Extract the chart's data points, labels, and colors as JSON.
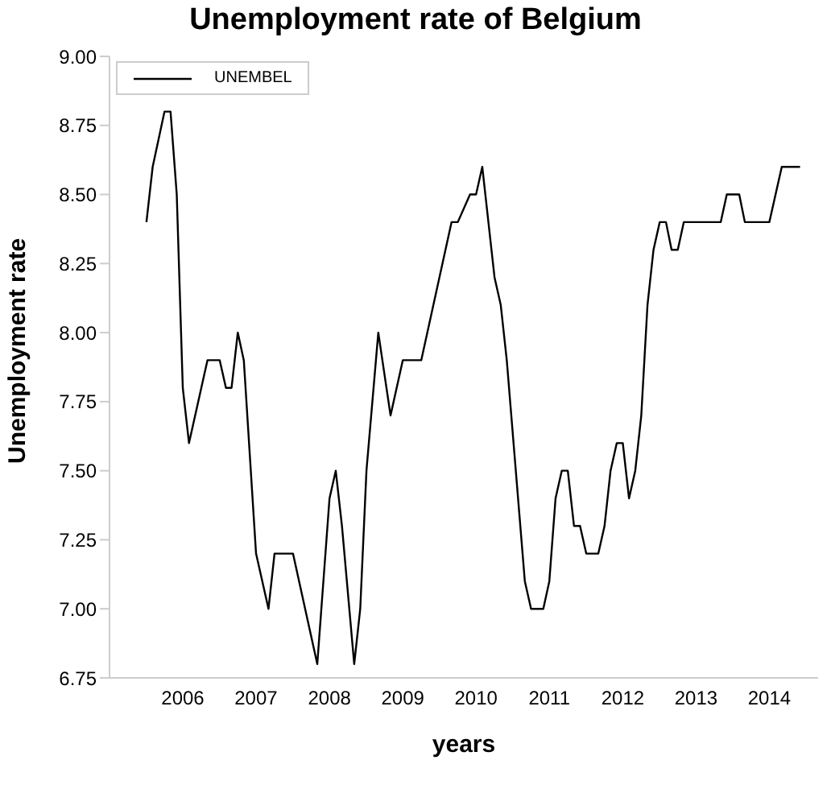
{
  "chart_data": {
    "type": "line",
    "title": "Unemployment rate of Belgium",
    "xlabel": "years",
    "ylabel": "Unemployment rate",
    "x": [
      "2006-01",
      "2006-02",
      "2006-04",
      "2006-05",
      "2006-06",
      "2006-07",
      "2006-08",
      "2006-11",
      "2007-01",
      "2007-02",
      "2007-03",
      "2007-04",
      "2007-05",
      "2007-07",
      "2007-09",
      "2007-10",
      "2008-01",
      "2008-05",
      "2008-07",
      "2008-08",
      "2008-09",
      "2008-11",
      "2008-12",
      "2009-01",
      "2009-03",
      "2009-05",
      "2009-07",
      "2009-10",
      "2010-03",
      "2010-04",
      "2010-06",
      "2010-07",
      "2010-08",
      "2010-10",
      "2010-11",
      "2010-12",
      "2011-03",
      "2011-04",
      "2011-06",
      "2011-07",
      "2011-08",
      "2011-09",
      "2011-10",
      "2011-11",
      "2011-12",
      "2012-01",
      "2012-03",
      "2012-04",
      "2012-05",
      "2012-06",
      "2012-07",
      "2012-08",
      "2012-09",
      "2012-10",
      "2012-11",
      "2012-12",
      "2013-01",
      "2013-02",
      "2013-03",
      "2013-04",
      "2013-05",
      "2013-11",
      "2013-12",
      "2014-02",
      "2014-03",
      "2014-07",
      "2014-09",
      "2014-12"
    ],
    "series": [
      {
        "name": "UNEMBEL",
        "color": "#000000",
        "values": [
          8.4,
          8.6,
          8.8,
          8.8,
          8.5,
          7.8,
          7.6,
          7.9,
          7.9,
          7.8,
          7.8,
          8.0,
          7.9,
          7.2,
          7.0,
          7.2,
          7.2,
          6.8,
          7.4,
          7.5,
          7.3,
          6.8,
          7.0,
          7.5,
          8.0,
          7.7,
          7.9,
          7.9,
          8.4,
          8.4,
          8.5,
          8.5,
          8.6,
          8.2,
          8.1,
          7.9,
          7.1,
          7.0,
          7.0,
          7.1,
          7.4,
          7.5,
          7.5,
          7.3,
          7.3,
          7.2,
          7.2,
          7.3,
          7.5,
          7.6,
          7.6,
          7.4,
          7.5,
          7.7,
          8.1,
          8.3,
          8.4,
          8.4,
          8.3,
          8.3,
          8.4,
          8.4,
          8.5,
          8.5,
          8.4,
          8.4,
          8.6,
          8.6
        ]
      }
    ],
    "xlim": [
      "2005-07",
      "2015-03"
    ],
    "xticks": [
      {
        "value": "2006-07",
        "label": "2006"
      },
      {
        "value": "2007-07",
        "label": "2007"
      },
      {
        "value": "2008-07",
        "label": "2008"
      },
      {
        "value": "2009-07",
        "label": "2009"
      },
      {
        "value": "2010-07",
        "label": "2010"
      },
      {
        "value": "2011-07",
        "label": "2011"
      },
      {
        "value": "2012-07",
        "label": "2012"
      },
      {
        "value": "2013-07",
        "label": "2013"
      },
      {
        "value": "2014-07",
        "label": "2014"
      }
    ],
    "ylim": [
      6.75,
      9.0
    ],
    "yticks": [
      {
        "value": 6.75,
        "label": "6.75"
      },
      {
        "value": 7.0,
        "label": "7.00"
      },
      {
        "value": 7.25,
        "label": "7.25"
      },
      {
        "value": 7.5,
        "label": "7.50"
      },
      {
        "value": 7.75,
        "label": "7.75"
      },
      {
        "value": 8.0,
        "label": "8.00"
      },
      {
        "value": 8.25,
        "label": "8.25"
      },
      {
        "value": 8.5,
        "label": "8.50"
      },
      {
        "value": 8.75,
        "label": "8.75"
      },
      {
        "value": 9.0,
        "label": "9.00"
      }
    ],
    "legend": "top left",
    "marker": "none",
    "line_style": "solid"
  }
}
